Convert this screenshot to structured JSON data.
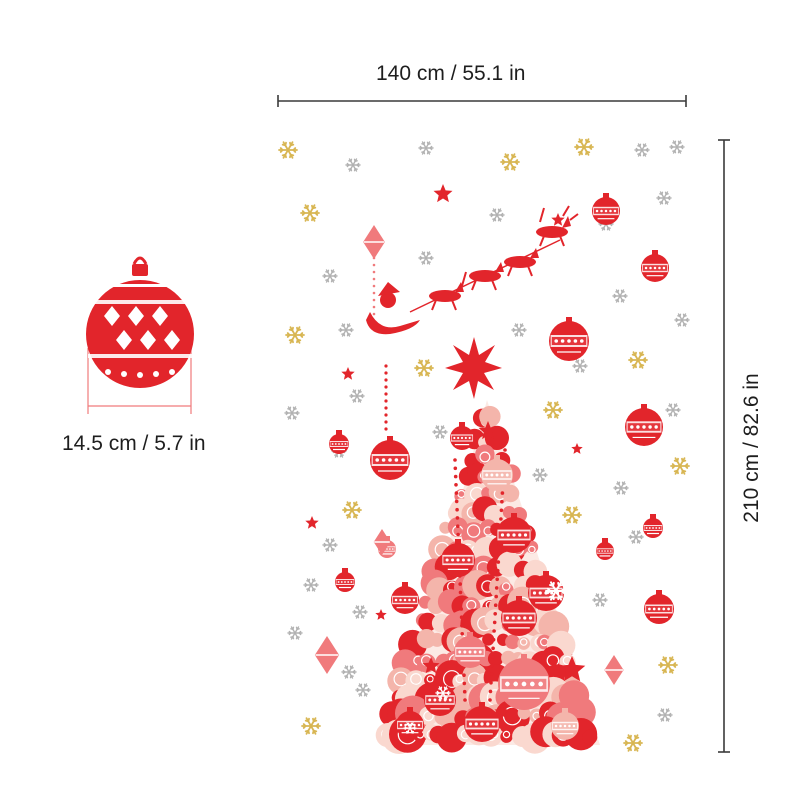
{
  "dimensions": {
    "width": "140 cm / 55.1 in",
    "height": "210 cm / 82.6 in",
    "ornament": "14.5 cm / 5.7 in"
  },
  "colors": {
    "red": "#e2252b",
    "light_red": "#f07a7c",
    "pink": "#f4b5ab",
    "peach": "#fad8cf",
    "gold": "#d8b653",
    "silver": "#b2b2b2",
    "line": "#3a3a3a"
  }
}
